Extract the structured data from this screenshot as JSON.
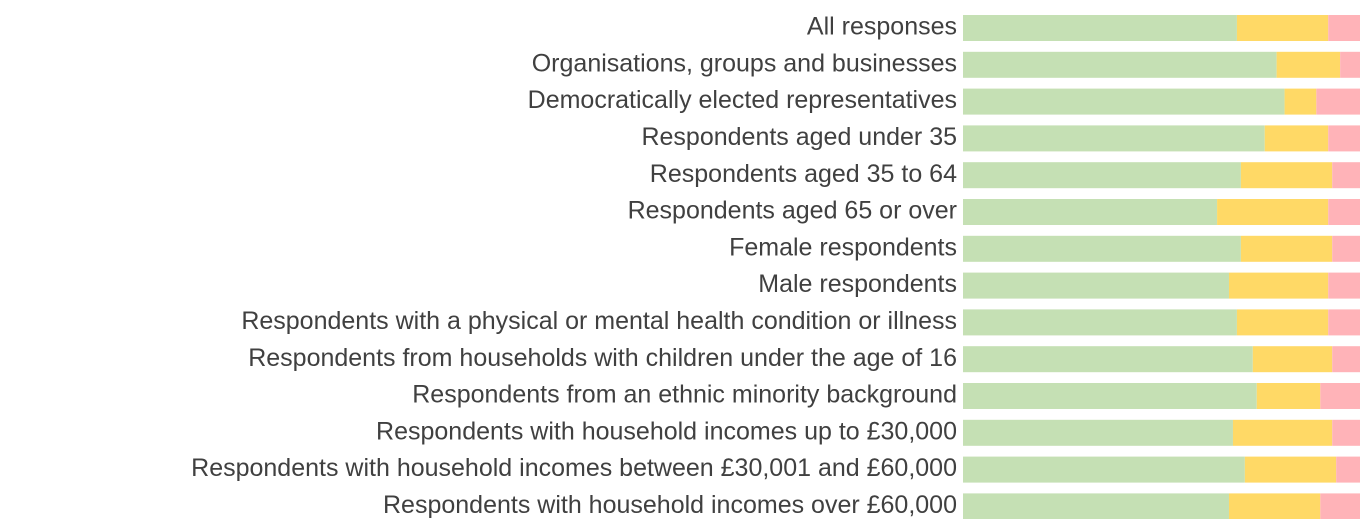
{
  "chart_data": {
    "type": "stacked-barh",
    "categories": [
      "All responses",
      "Organisations, groups and businesses",
      "Democratically elected representatives",
      "Respondents aged under 35",
      "Respondents aged 35 to 64",
      "Respondents aged 65 or over",
      "Female respondents",
      "Male respondents",
      "Respondents with a physical or mental health condition or illness",
      "Respondents from households with children under the age of 16",
      "Respondents from an ethnic minority background",
      "Respondents with household incomes up to £30,000",
      "Respondents with household incomes between £30,001 and £60,000",
      "Respondents with household incomes over £60,000"
    ],
    "series": [
      {
        "color": "#c5e0b4",
        "values": [
          69,
          79,
          81,
          76,
          70,
          64,
          70,
          67,
          69,
          73,
          74,
          68,
          71,
          67
        ]
      },
      {
        "color": "#ffd966",
        "values": [
          23,
          16,
          8,
          16,
          23,
          28,
          23,
          25,
          23,
          20,
          16,
          25,
          23,
          23
        ]
      },
      {
        "color": "#ffb3b8",
        "values": [
          8,
          5,
          11,
          8,
          7,
          8,
          7,
          8,
          8,
          7,
          10,
          7,
          6,
          10
        ]
      }
    ],
    "xlim": [
      0,
      100
    ]
  }
}
